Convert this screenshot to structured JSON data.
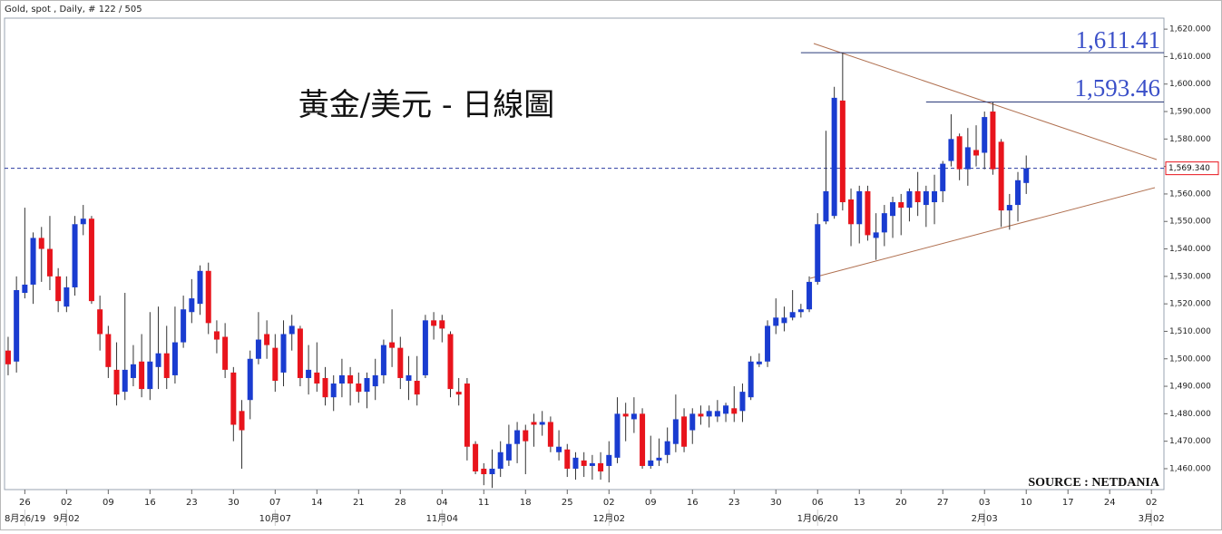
{
  "chart_data": {
    "type": "candlestick",
    "header": "Gold, spot , Daily, # 122 / 505",
    "title": "黃金/美元 - 日線圖",
    "source": "SOURCE : NETDANIA",
    "up_color": "#1a3cd0",
    "down_color": "#e8141c",
    "open": [
      1503,
      1499,
      1524,
      1527,
      1544,
      1540,
      1530,
      1519,
      1526,
      1549,
      1551,
      1518,
      1509,
      1496,
      1488,
      1493,
      1499,
      1489,
      1497,
      1502,
      1494,
      1506,
      1517,
      1520,
      1532,
      1510,
      1508,
      1495,
      1481,
      1485,
      1500,
      1509,
      1504,
      1495,
      1509,
      1511,
      1493,
      1495,
      1493,
      1486,
      1491,
      1494,
      1491,
      1488,
      1490,
      1494,
      1506,
      1504,
      1492,
      1492,
      1494,
      1514,
      1514,
      1509,
      1488,
      1491,
      1469,
      1460,
      1458,
      1460,
      1463,
      1469,
      1474,
      1477,
      1476,
      1477,
      1466,
      1467,
      1460,
      1463,
      1461,
      1462,
      1461,
      1464,
      1480,
      1478,
      1480,
      1461,
      1463,
      1465,
      1469,
      1479,
      1474,
      1480,
      1479,
      1479,
      1480,
      1482,
      1481,
      1486,
      1498,
      1499,
      1512,
      1513,
      1515,
      1517,
      1518,
      1528,
      1550,
      1552,
      1594,
      1558,
      1549,
      1561,
      1544,
      1546,
      1552,
      1557,
      1555,
      1561,
      1556,
      1557,
      1561,
      1572,
      1581,
      1569,
      1576,
      1575,
      1590,
      1579,
      1554,
      1556,
      1564
    ],
    "high": [
      1508,
      1530,
      1555,
      1546,
      1548,
      1552,
      1533,
      1530,
      1552,
      1556,
      1552,
      1523,
      1512,
      1506,
      1524,
      1505,
      1509,
      1517,
      1519,
      1512,
      1519,
      1523,
      1529,
      1534,
      1535,
      1514,
      1513,
      1497,
      1485,
      1503,
      1517,
      1514,
      1509,
      1514,
      1516,
      1512,
      1505,
      1506,
      1497,
      1494,
      1500,
      1497,
      1495,
      1495,
      1500,
      1507,
      1518,
      1508,
      1501,
      1501,
      1516,
      1517,
      1516,
      1510,
      1493,
      1493,
      1470,
      1462,
      1467,
      1470,
      1476,
      1477,
      1476,
      1480,
      1481,
      1479,
      1474,
      1469,
      1466,
      1466,
      1465,
      1466,
      1470,
      1486,
      1484,
      1486,
      1482,
      1472,
      1471,
      1475,
      1487,
      1482,
      1482,
      1483,
      1483,
      1485,
      1484,
      1490,
      1491,
      1501,
      1502,
      1514,
      1522,
      1519,
      1525,
      1520,
      1530,
      1553,
      1583,
      1599,
      1611.41,
      1562,
      1563,
      1563,
      1553,
      1556,
      1559,
      1560,
      1562,
      1568,
      1563,
      1567,
      1572,
      1589,
      1582,
      1584,
      1585,
      1590,
      1593.46,
      1580,
      1560,
      1568,
      1574
    ],
    "low": [
      1494,
      1495,
      1522,
      1520,
      1528,
      1525,
      1517,
      1517,
      1523,
      1545,
      1520,
      1503,
      1493,
      1483,
      1485,
      1490,
      1486,
      1485,
      1489,
      1489,
      1491,
      1504,
      1513,
      1516,
      1509,
      1502,
      1493,
      1470,
      1460,
      1478,
      1498,
      1500,
      1488,
      1490,
      1503,
      1490,
      1487,
      1488,
      1483,
      1481,
      1486,
      1483,
      1484,
      1482,
      1485,
      1491,
      1497,
      1489,
      1485,
      1483,
      1493,
      1507,
      1506,
      1486,
      1483,
      1463,
      1458,
      1454,
      1453,
      1457,
      1461,
      1462,
      1458,
      1468,
      1472,
      1466,
      1463,
      1457,
      1456,
      1457,
      1456,
      1456,
      1455,
      1462,
      1470,
      1473,
      1460,
      1460,
      1461,
      1462,
      1466,
      1466,
      1469,
      1476,
      1475,
      1477,
      1477,
      1477,
      1477,
      1485,
      1497,
      1497,
      1509,
      1510,
      1514,
      1515,
      1517,
      1527,
      1549,
      1551,
      1554,
      1541,
      1542,
      1543,
      1536,
      1541,
      1544,
      1545,
      1550,
      1552,
      1548,
      1549,
      1557,
      1570,
      1565,
      1563,
      1570,
      1569,
      1567,
      1548,
      1547,
      1550,
      1560
    ],
    "close": [
      1498,
      1525,
      1527,
      1544,
      1540,
      1530,
      1521,
      1526,
      1549,
      1551,
      1521,
      1509,
      1497,
      1487,
      1496,
      1498,
      1489,
      1499,
      1502,
      1493,
      1506,
      1518,
      1522,
      1532,
      1513,
      1507,
      1496,
      1476,
      1474,
      1500,
      1507,
      1505,
      1492,
      1509,
      1512,
      1493,
      1496,
      1491,
      1486,
      1491,
      1494,
      1491,
      1488,
      1493,
      1494,
      1505,
      1504,
      1493,
      1494,
      1487,
      1514,
      1512,
      1511,
      1489,
      1487,
      1468,
      1459,
      1458,
      1460,
      1466,
      1469,
      1474,
      1470,
      1476,
      1477,
      1468,
      1468,
      1460,
      1464,
      1461,
      1462,
      1459,
      1465,
      1480,
      1479,
      1480,
      1461,
      1463,
      1464,
      1470,
      1478,
      1468,
      1480,
      1479,
      1481,
      1481,
      1483,
      1480,
      1488,
      1499,
      1499,
      1512,
      1515,
      1515,
      1517,
      1518,
      1528,
      1549,
      1561,
      1595,
      1557,
      1549,
      1561,
      1545,
      1546,
      1553,
      1557,
      1555,
      1561,
      1557,
      1561,
      1561,
      1571,
      1580,
      1569,
      1577,
      1574,
      1588,
      1569,
      1554,
      1556,
      1565,
      1569.34
    ],
    "xlim": [
      -0.43,
      138.5
    ],
    "xticks": [
      {
        "value": 2,
        "label": "26"
      },
      {
        "value": 7,
        "label": "02"
      },
      {
        "value": 12,
        "label": "09"
      },
      {
        "value": 17,
        "label": "16"
      },
      {
        "value": 22,
        "label": "23"
      },
      {
        "value": 27,
        "label": "30"
      },
      {
        "value": 32,
        "label": "07"
      },
      {
        "value": 37,
        "label": "14"
      },
      {
        "value": 42,
        "label": "21"
      },
      {
        "value": 47,
        "label": "28"
      },
      {
        "value": 52,
        "label": "04"
      },
      {
        "value": 57,
        "label": "11"
      },
      {
        "value": 62,
        "label": "18"
      },
      {
        "value": 67,
        "label": "25"
      },
      {
        "value": 72,
        "label": "02"
      },
      {
        "value": 77,
        "label": "09"
      },
      {
        "value": 82,
        "label": "16"
      },
      {
        "value": 87,
        "label": "23"
      },
      {
        "value": 92,
        "label": "30"
      },
      {
        "value": 97,
        "label": "06"
      },
      {
        "value": 102,
        "label": "13"
      },
      {
        "value": 107,
        "label": "20"
      },
      {
        "value": 112,
        "label": "27"
      },
      {
        "value": 117,
        "label": "03"
      },
      {
        "value": 122,
        "label": "10"
      },
      {
        "value": 127,
        "label": "17"
      },
      {
        "value": 132,
        "label": "24"
      },
      {
        "value": 137,
        "label": "02"
      }
    ],
    "month_ticks": [
      {
        "value": 2,
        "label": "8月26/19"
      },
      {
        "value": 7,
        "label": "9月02"
      },
      {
        "value": 32,
        "label": "10月07"
      },
      {
        "value": 52,
        "label": "11月04"
      },
      {
        "value": 72,
        "label": "12月02"
      },
      {
        "value": 97,
        "label": "1月06/20"
      },
      {
        "value": 117,
        "label": "2月03"
      },
      {
        "value": 137,
        "label": "3月02"
      }
    ],
    "ylim": [
      1452.4,
      1624
    ],
    "yticks": [
      {
        "value": 1460,
        "label": "1,460.000"
      },
      {
        "value": 1470,
        "label": "1,470.000"
      },
      {
        "value": 1480,
        "label": "1,480.000"
      },
      {
        "value": 1490,
        "label": "1,490.000"
      },
      {
        "value": 1500,
        "label": "1,500.000"
      },
      {
        "value": 1510,
        "label": "1,510.000"
      },
      {
        "value": 1520,
        "label": "1,520.000"
      },
      {
        "value": 1530,
        "label": "1,530.000"
      },
      {
        "value": 1540,
        "label": "1,540.000"
      },
      {
        "value": 1550,
        "label": "1,550.000"
      },
      {
        "value": 1560,
        "label": "1,560.000"
      },
      {
        "value": 1570,
        "label": "1,570.000"
      },
      {
        "value": 1580,
        "label": "1,580.000"
      },
      {
        "value": 1590,
        "label": "1,590.000"
      },
      {
        "value": 1600,
        "label": "1,600.000"
      },
      {
        "value": 1610,
        "label": "1,610.000"
      },
      {
        "value": 1620,
        "label": "1,620.000"
      }
    ],
    "last_price": {
      "value": 1569.34,
      "label": "1,569.340"
    },
    "annotations": [
      {
        "value": 1611.41,
        "label": "1,611.41"
      },
      {
        "value": 1593.46,
        "label": "1,593.46"
      }
    ]
  }
}
